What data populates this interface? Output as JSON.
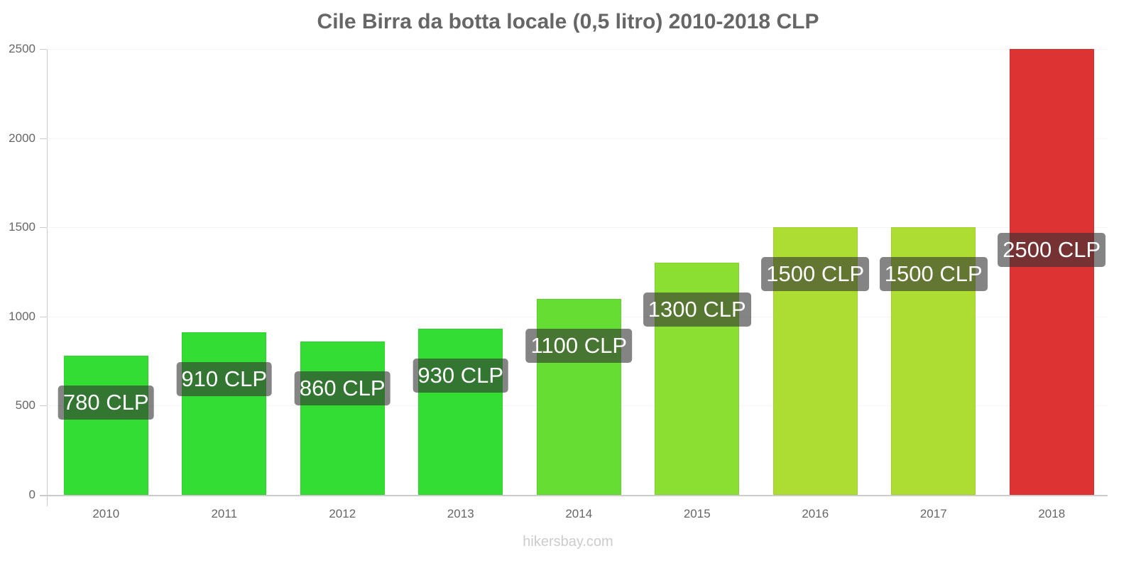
{
  "title": "Cile Birra da botta locale (0,5 litro) 2010-2018 CLP",
  "watermark": "hikersbay.com",
  "y_axis": {
    "ticks": [
      {
        "value": 0,
        "label": "0"
      },
      {
        "value": 500,
        "label": "500"
      },
      {
        "value": 1000,
        "label": "1000"
      },
      {
        "value": 1500,
        "label": "1500"
      },
      {
        "value": 2000,
        "label": "2000"
      },
      {
        "value": 2500,
        "label": "2500"
      }
    ]
  },
  "bars": [
    {
      "year": "2010",
      "value": 780,
      "label": "780 CLP",
      "color": "#33dd33"
    },
    {
      "year": "2011",
      "value": 910,
      "label": "910 CLP",
      "color": "#33dd33"
    },
    {
      "year": "2012",
      "value": 860,
      "label": "860 CLP",
      "color": "#33dd33"
    },
    {
      "year": "2013",
      "value": 930,
      "label": "930 CLP",
      "color": "#33dd33"
    },
    {
      "year": "2014",
      "value": 1100,
      "label": "1100 CLP",
      "color": "#66dd33"
    },
    {
      "year": "2015",
      "value": 1300,
      "label": "1300 CLP",
      "color": "#8bdf33"
    },
    {
      "year": "2016",
      "value": 1500,
      "label": "1500 CLP",
      "color": "#addd33"
    },
    {
      "year": "2017",
      "value": 1500,
      "label": "1500 CLP",
      "color": "#addd33"
    },
    {
      "year": "2018",
      "value": 2500,
      "label": "2500 CLP",
      "color": "#dd3333"
    }
  ],
  "chart_data": {
    "type": "bar",
    "title": "Cile Birra da botta locale (0,5 litro) 2010-2018 CLP",
    "categories": [
      "2010",
      "2011",
      "2012",
      "2013",
      "2014",
      "2015",
      "2016",
      "2017",
      "2018"
    ],
    "values": [
      780,
      910,
      860,
      930,
      1100,
      1300,
      1500,
      1500,
      2500
    ],
    "data_labels": [
      "780 CLP",
      "910 CLP",
      "860 CLP",
      "930 CLP",
      "1100 CLP",
      "1300 CLP",
      "1500 CLP",
      "1500 CLP",
      "2500 CLP"
    ],
    "xlabel": "",
    "ylabel": "",
    "ylim": [
      0,
      2500
    ],
    "yticks": [
      0,
      500,
      1000,
      1500,
      2000,
      2500
    ],
    "grid": true,
    "legend": null,
    "colors": [
      "#33dd33",
      "#33dd33",
      "#33dd33",
      "#33dd33",
      "#66dd33",
      "#8bdf33",
      "#addd33",
      "#addd33",
      "#dd3333"
    ]
  }
}
